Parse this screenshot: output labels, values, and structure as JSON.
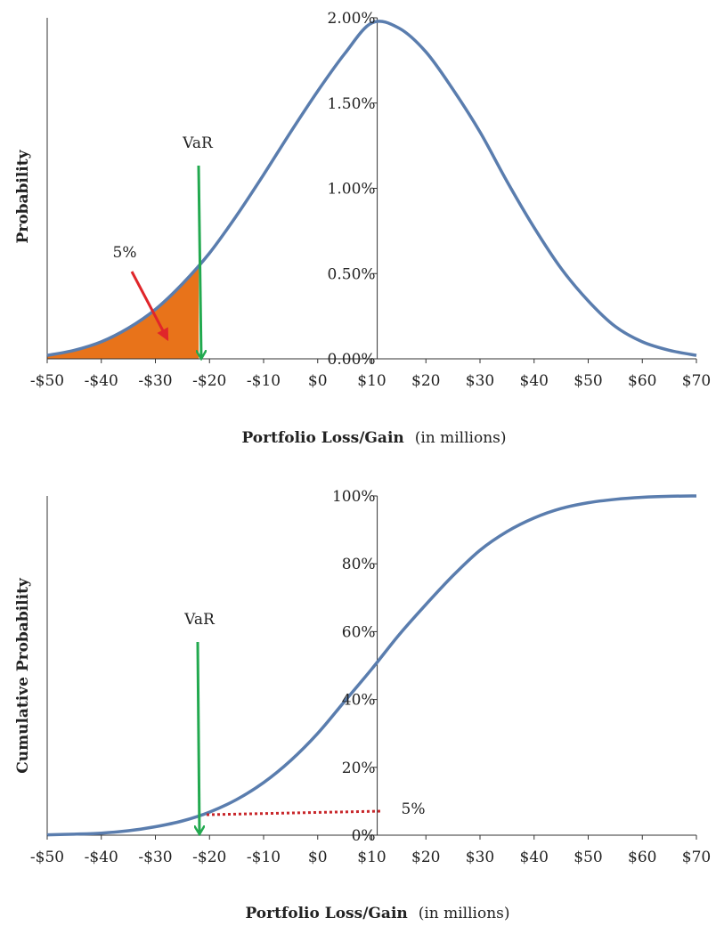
{
  "colors": {
    "curve": "#5A7DAE",
    "tail_fill": "#E8731A",
    "var_arrow": "#22A94F",
    "tail_arrow": "#E0262A",
    "dotted_line": "#C8262A",
    "axis": "#333333"
  },
  "chart_data": [
    {
      "type": "area",
      "xlabel_bold": "Portfolio Loss/Gain",
      "xlabel_rest": "(in millions)",
      "ylabel": "Probability",
      "x_ticks": [
        "-$50",
        "-$40",
        "-$30",
        "-$20",
        "-$10",
        "$0",
        "$10",
        "$20",
        "$30",
        "$40",
        "$50",
        "$60",
        "$70"
      ],
      "x_tick_values": [
        -50,
        -40,
        -30,
        -20,
        -10,
        0,
        10,
        20,
        30,
        40,
        50,
        60,
        70
      ],
      "y_ticks": [
        "0.00%",
        "0.50%",
        "1.00%",
        "1.50%",
        "2.00%"
      ],
      "y_tick_values": [
        0,
        0.5,
        1.0,
        1.5,
        2.0
      ],
      "xlim": [
        -50,
        70
      ],
      "ylim": [
        0,
        2.0
      ],
      "y_axis_at_x": 11,
      "series": [
        {
          "x": [
            -50,
            -45,
            -40,
            -35,
            -30,
            -25,
            -20,
            -15,
            -10,
            -5,
            0,
            5,
            10,
            15,
            20,
            25,
            30,
            35,
            40,
            45,
            50,
            55,
            60,
            65,
            70
          ],
          "y": [
            0.02,
            0.05,
            0.1,
            0.18,
            0.29,
            0.44,
            0.62,
            0.84,
            1.08,
            1.33,
            1.57,
            1.79,
            1.97,
            1.94,
            1.8,
            1.58,
            1.33,
            1.04,
            0.77,
            0.53,
            0.34,
            0.19,
            0.1,
            0.05,
            0.02
          ]
        }
      ],
      "shaded_region": {
        "from": -50,
        "to": -22
      },
      "annotations": {
        "var_label": "VaR",
        "var_x": -22,
        "tail_label": "5%"
      }
    },
    {
      "type": "line",
      "xlabel_bold": "Portfolio Loss/Gain",
      "xlabel_rest": "(in millions)",
      "ylabel": "Cumulative Probability",
      "x_ticks": [
        "-$50",
        "-$40",
        "-$30",
        "-$20",
        "-$10",
        "$0",
        "$10",
        "$20",
        "$30",
        "$40",
        "$50",
        "$60",
        "$70"
      ],
      "x_tick_values": [
        -50,
        -40,
        -30,
        -20,
        -10,
        0,
        10,
        20,
        30,
        40,
        50,
        60,
        70
      ],
      "y_ticks": [
        "0%",
        "20%",
        "40%",
        "60%",
        "80%",
        "100%"
      ],
      "y_tick_values": [
        0,
        20,
        40,
        60,
        80,
        100
      ],
      "xlim": [
        -50,
        70
      ],
      "ylim": [
        0,
        100
      ],
      "y_axis_at_x": 11,
      "series": [
        {
          "x": [
            -50,
            -45,
            -40,
            -35,
            -30,
            -25,
            -20,
            -15,
            -10,
            -5,
            0,
            5,
            10,
            15,
            20,
            25,
            30,
            35,
            40,
            45,
            50,
            55,
            60,
            65,
            70
          ],
          "y": [
            0.1,
            0.3,
            0.6,
            1.3,
            2.5,
            4.2,
            6.8,
            10.5,
            15.5,
            22,
            30,
            39.5,
            49,
            59,
            68,
            76.5,
            84,
            89.5,
            93.5,
            96.3,
            98,
            99,
            99.6,
            99.9,
            100
          ]
        }
      ],
      "annotations": {
        "var_label": "VaR",
        "var_x": -22,
        "level_label": "5%",
        "level_value": 5
      }
    }
  ]
}
